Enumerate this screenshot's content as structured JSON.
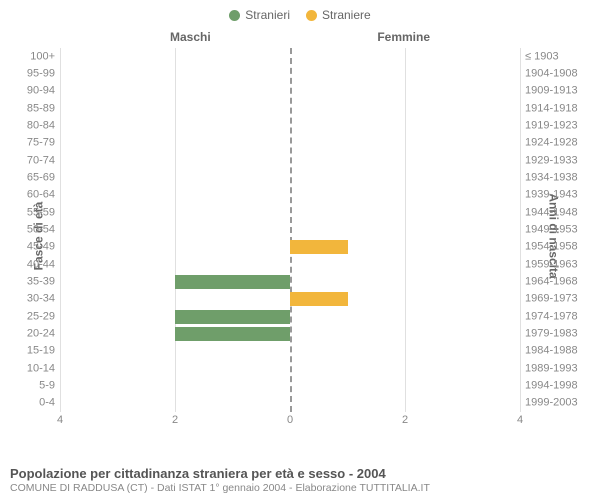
{
  "legend": [
    {
      "label": "Stranieri",
      "color": "#6f9e6a"
    },
    {
      "label": "Straniere",
      "color": "#f2b63c"
    }
  ],
  "columns": {
    "male": "Maschi",
    "female": "Femmine"
  },
  "axis_titles": {
    "left": "Fasce di età",
    "right": "Anni di nascita"
  },
  "grid_color": "#e0e0e0",
  "background_color": "#ffffff",
  "center_line_color": "#999999",
  "bar_colors": {
    "male": "#6f9e6a",
    "female": "#f2b63c"
  },
  "bar_width_ratio": 0.8,
  "x_axis": {
    "max": 4,
    "ticks": [
      4,
      2,
      0,
      2,
      4
    ]
  },
  "rows": [
    {
      "age": "100+",
      "birth": "≤ 1903",
      "m": 0,
      "f": 0
    },
    {
      "age": "95-99",
      "birth": "1904-1908",
      "m": 0,
      "f": 0
    },
    {
      "age": "90-94",
      "birth": "1909-1913",
      "m": 0,
      "f": 0
    },
    {
      "age": "85-89",
      "birth": "1914-1918",
      "m": 0,
      "f": 0
    },
    {
      "age": "80-84",
      "birth": "1919-1923",
      "m": 0,
      "f": 0
    },
    {
      "age": "75-79",
      "birth": "1924-1928",
      "m": 0,
      "f": 0
    },
    {
      "age": "70-74",
      "birth": "1929-1933",
      "m": 0,
      "f": 0
    },
    {
      "age": "65-69",
      "birth": "1934-1938",
      "m": 0,
      "f": 0
    },
    {
      "age": "60-64",
      "birth": "1939-1943",
      "m": 0,
      "f": 0
    },
    {
      "age": "55-59",
      "birth": "1944-1948",
      "m": 0,
      "f": 0
    },
    {
      "age": "50-54",
      "birth": "1949-1953",
      "m": 0,
      "f": 0
    },
    {
      "age": "45-49",
      "birth": "1954-1958",
      "m": 0,
      "f": 1
    },
    {
      "age": "40-44",
      "birth": "1959-1963",
      "m": 0,
      "f": 0
    },
    {
      "age": "35-39",
      "birth": "1964-1968",
      "m": 2,
      "f": 0
    },
    {
      "age": "30-34",
      "birth": "1969-1973",
      "m": 0,
      "f": 1
    },
    {
      "age": "25-29",
      "birth": "1974-1978",
      "m": 2,
      "f": 0
    },
    {
      "age": "20-24",
      "birth": "1979-1983",
      "m": 2,
      "f": 0
    },
    {
      "age": "15-19",
      "birth": "1984-1988",
      "m": 0,
      "f": 0
    },
    {
      "age": "10-14",
      "birth": "1989-1993",
      "m": 0,
      "f": 0
    },
    {
      "age": "5-9",
      "birth": "1994-1998",
      "m": 0,
      "f": 0
    },
    {
      "age": "0-4",
      "birth": "1999-2003",
      "m": 0,
      "f": 0
    }
  ],
  "caption": {
    "title": "Popolazione per cittadinanza straniera per età e sesso - 2004",
    "subtitle": "COMUNE DI RADDUSA (CT) - Dati ISTAT 1° gennaio 2004 - Elaborazione TUTTITALIA.IT"
  }
}
